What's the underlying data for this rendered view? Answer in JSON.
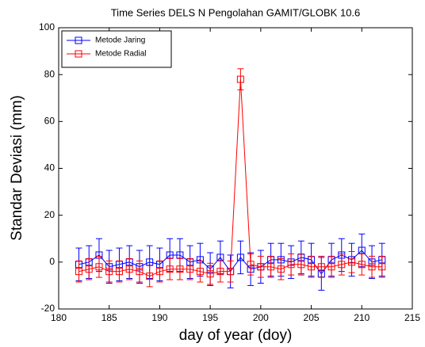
{
  "chart_data": {
    "type": "line",
    "title": "Time Series DELS N Pengolahan GAMIT/GLOBK 10.6",
    "xlabel": "day of year (doy)",
    "ylabel": "Standar Deviasi (mm)",
    "x": [
      182,
      183,
      184,
      185,
      186,
      187,
      188,
      189,
      190,
      191,
      192,
      193,
      194,
      195,
      196,
      197,
      198,
      199,
      200,
      201,
      202,
      203,
      204,
      205,
      206,
      207,
      208,
      209,
      210,
      211,
      212
    ],
    "series": [
      {
        "name": "Metode Jaring",
        "color": "#0000ff",
        "values": [
          -1,
          0,
          3,
          -2,
          -1,
          0,
          -2,
          0,
          -1,
          3,
          3,
          0,
          1,
          -3,
          2,
          -4,
          2,
          -3,
          -2,
          1,
          1,
          0,
          2,
          1,
          -5,
          1,
          3,
          1,
          5,
          0,
          1
        ],
        "errors": [
          7,
          7,
          7,
          7,
          7,
          7,
          7,
          7,
          7,
          7,
          7,
          7,
          7,
          7,
          7,
          7,
          7,
          7,
          7,
          7,
          7,
          7,
          7,
          7,
          7,
          7,
          7,
          7,
          7,
          7,
          7
        ]
      },
      {
        "name": "Metode Radial",
        "color": "#ff0000",
        "values": [
          -4,
          -3,
          -2,
          -4,
          -4,
          -3,
          -4,
          -6,
          -4,
          -3,
          -3,
          -3,
          -4,
          -5,
          -4,
          -4,
          78,
          -1,
          -2,
          -2,
          -3,
          -1,
          -1,
          -2,
          -2,
          -2,
          -1,
          0,
          -1,
          -2,
          -2
        ],
        "errors": [
          4.5,
          4.5,
          4.5,
          4.5,
          4.5,
          4.5,
          4.5,
          4.5,
          4.5,
          4.5,
          4.5,
          4.5,
          4.5,
          4.5,
          4.5,
          4.5,
          4.5,
          4.5,
          4.5,
          4.5,
          4.5,
          4.5,
          4.5,
          4.5,
          4.5,
          4.5,
          4.5,
          4.5,
          4.5,
          4.5,
          4.5
        ]
      }
    ],
    "xlim": [
      180,
      215
    ],
    "xticks": [
      180,
      185,
      190,
      195,
      200,
      205,
      210,
      215
    ],
    "ylim": [
      -20,
      100
    ],
    "yticks": [
      -20,
      0,
      20,
      40,
      60,
      80,
      100
    ],
    "legend": "upper left",
    "grid": false
  }
}
